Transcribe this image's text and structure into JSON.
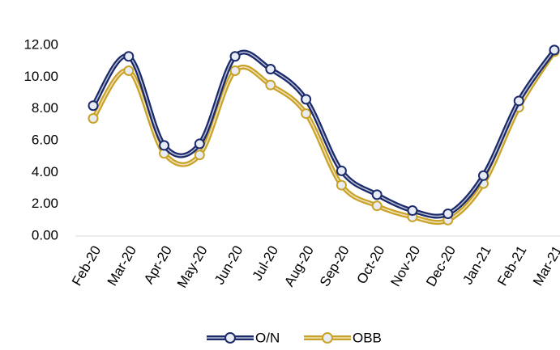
{
  "chart_data": {
    "type": "line",
    "categories": [
      "Feb-20",
      "Mar-20",
      "Apr-20",
      "May-20",
      "Jun-20",
      "Jul-20",
      "Aug-20",
      "Sep-20",
      "Oct-20",
      "Nov-20",
      "Dec-20",
      "Jan-21",
      "Feb-21",
      "Mar-21"
    ],
    "series": [
      {
        "name": "O/N",
        "color": "#1b2a6b",
        "values": [
          8.2,
          11.3,
          5.7,
          5.8,
          11.3,
          10.5,
          8.6,
          4.1,
          2.6,
          1.6,
          1.4,
          3.8,
          8.5,
          11.7
        ]
      },
      {
        "name": "OBB",
        "color": "#c9a227",
        "values": [
          7.4,
          10.4,
          5.2,
          5.1,
          10.4,
          9.5,
          7.7,
          3.2,
          1.9,
          1.2,
          1.0,
          3.3,
          8.1,
          11.6
        ]
      }
    ],
    "ylim": [
      0,
      12
    ],
    "yticks": [
      {
        "value": 0,
        "label": "0.00"
      },
      {
        "value": 2,
        "label": "2.00"
      },
      {
        "value": 4,
        "label": "4.00"
      },
      {
        "value": 6,
        "label": "6.00"
      },
      {
        "value": 8,
        "label": "8.00"
      },
      {
        "value": 10,
        "label": "10.00"
      },
      {
        "value": 12,
        "label": "12.00"
      }
    ],
    "legend": "bottom"
  }
}
